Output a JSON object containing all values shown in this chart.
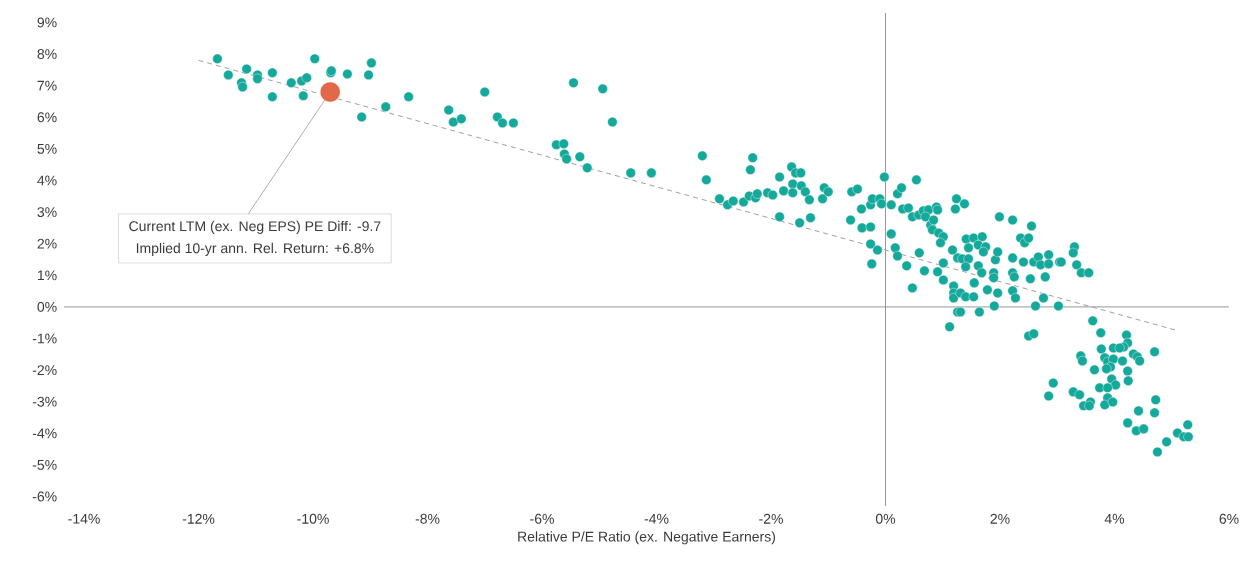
{
  "chart_data": {
    "type": "scatter",
    "xlabel": "Relative P/E Ratio (ex. Negative Earners)",
    "xlim": [
      -14.35,
      6
    ],
    "ylim": [
      -6.3,
      9.3
    ],
    "xticks": [
      {
        "value": -14,
        "label": "-14%"
      },
      {
        "value": -12,
        "label": "-12%"
      },
      {
        "value": -10,
        "label": "-10%"
      },
      {
        "value": -8,
        "label": "-8%"
      },
      {
        "value": -6,
        "label": "-6%"
      },
      {
        "value": -4,
        "label": "-4%"
      },
      {
        "value": -2,
        "label": "-2%"
      },
      {
        "value": 0,
        "label": "0%"
      },
      {
        "value": 2,
        "label": "2%"
      },
      {
        "value": 4,
        "label": "4%"
      },
      {
        "value": 6,
        "label": "6%"
      }
    ],
    "yticks": [
      {
        "value": -6,
        "label": "-6%"
      },
      {
        "value": -5,
        "label": "-5%"
      },
      {
        "value": -4,
        "label": "-4%"
      },
      {
        "value": -3,
        "label": "-3%"
      },
      {
        "value": -2,
        "label": "-2%"
      },
      {
        "value": -1,
        "label": "-1%"
      },
      {
        "value": 0,
        "label": "0%"
      },
      {
        "value": 1,
        "label": "1%"
      },
      {
        "value": 2,
        "label": "2%"
      },
      {
        "value": 3,
        "label": "3%"
      },
      {
        "value": 4,
        "label": "4%"
      },
      {
        "value": 5,
        "label": "5%"
      },
      {
        "value": 6,
        "label": "6%"
      },
      {
        "value": 7,
        "label": "7%"
      },
      {
        "value": 8,
        "label": "8%"
      },
      {
        "value": 9,
        "label": "9%"
      }
    ],
    "marker": "circle",
    "annotations": [
      {
        "text": "Current LTM (ex. Neg EPS) PE Diff: -9.7",
        "x": -9.7,
        "y": 6.8
      },
      "Implied 10-yr ann. Rel. Return: +6.8%"
    ],
    "series": [
      {
        "color": "#14a99a",
        "x": [
          -11.67,
          -11.48,
          -11.16,
          -11.25,
          -11.23,
          -10.97,
          -10.97,
          -10.71,
          -10.71,
          -10.38,
          -10.2,
          -10.11,
          -10.17,
          -9.97,
          -9.69,
          -9.68,
          -9.4,
          -9.03,
          -8.98,
          -9.15,
          -8.73,
          -8.33,
          -7.63,
          -7.55,
          -7.41,
          -7.0,
          -6.78,
          -6.69,
          -6.5,
          -5.75,
          -5.62,
          -5.45,
          -4.94,
          -4.77,
          -5.61,
          -5.57,
          -5.34,
          -5.21,
          -4.45,
          -4.09,
          -3.2,
          -3.13,
          -2.9,
          -2.76,
          -2.66,
          -2.48,
          -2.38,
          -2.27,
          -2.24,
          -2.32,
          -2.36,
          -2.06,
          -1.97,
          -1.85,
          -1.78,
          -1.64,
          -1.57,
          -1.48,
          -1.62,
          -1.62,
          -1.47,
          -1.4,
          -1.33,
          -1.85,
          -1.5,
          -1.31,
          -1.1,
          -1.07,
          -1.0,
          -0.59,
          -0.49,
          -0.61,
          -0.42,
          -0.41,
          -0.26,
          -0.26,
          -0.14,
          -0.24,
          -0.26,
          -0.23,
          -0.1,
          -0.07,
          -0.02,
          0.1,
          0.1,
          0.17,
          0.21,
          0.21,
          0.28,
          0.3,
          0.4,
          0.47,
          0.54,
          0.58,
          0.66,
          0.75,
          0.7,
          0.79,
          0.84,
          0.82,
          0.89,
          0.91,
          0.93,
          1.01,
          0.96,
          0.37,
          0.47,
          0.59,
          0.68,
          0.91,
          1.01,
          1.01,
          1.17,
          1.19,
          1.19,
          1.19,
          1.24,
          1.22,
          1.38,
          1.26,
          1.34,
          1.45,
          1.4,
          1.41,
          1.45,
          1.54,
          1.69,
          1.62,
          1.75,
          1.71,
          1.31,
          1.4,
          1.54,
          1.26,
          1.31,
          1.64,
          1.12,
          1.55,
          1.62,
          1.68,
          1.78,
          1.89,
          1.92,
          1.96,
          1.89,
          1.96,
          1.9,
          1.99,
          2.22,
          2.22,
          2.22,
          2.25,
          2.22,
          2.27,
          2.41,
          2.36,
          2.43,
          2.5,
          2.55,
          2.53,
          2.59,
          2.67,
          2.71,
          2.85,
          2.85,
          3.04,
          2.79,
          2.76,
          2.62,
          3.02,
          2.5,
          2.59,
          3.07,
          3.3,
          3.28,
          3.34,
          3.42,
          3.55,
          3.62,
          3.76,
          4.21,
          4.23,
          4.16,
          3.77,
          3.98,
          4.09,
          3.41,
          3.44,
          3.83,
          3.88,
          3.98,
          3.93,
          3.86,
          4.14,
          4.33,
          4.4,
          4.44,
          4.7,
          3.65,
          4.23,
          4.24,
          3.95,
          4.02,
          3.74,
          3.88,
          2.93,
          2.85,
          3.28,
          3.39,
          3.58,
          3.46,
          3.56,
          3.88,
          3.83,
          3.97,
          4.72,
          4.42,
          4.7,
          4.23,
          4.38,
          4.51,
          5.28,
          5.1,
          5.21,
          5.29,
          4.91,
          4.75
        ],
        "values": [
          7.85,
          7.34,
          7.53,
          7.09,
          6.96,
          7.34,
          7.22,
          7.41,
          6.65,
          7.09,
          7.15,
          7.25,
          6.68,
          7.85,
          7.41,
          7.47,
          7.37,
          7.34,
          7.72,
          6.01,
          6.33,
          6.65,
          6.23,
          5.85,
          5.95,
          6.8,
          6.01,
          5.82,
          5.82,
          5.13,
          5.16,
          7.09,
          6.9,
          5.85,
          4.84,
          4.68,
          4.75,
          4.4,
          4.24,
          4.24,
          4.78,
          4.02,
          3.42,
          3.23,
          3.35,
          3.32,
          3.51,
          3.45,
          3.58,
          4.72,
          4.34,
          3.61,
          3.54,
          4.11,
          3.67,
          4.43,
          4.24,
          4.24,
          3.89,
          3.61,
          3.83,
          3.64,
          3.39,
          2.85,
          2.66,
          2.82,
          3.42,
          3.77,
          3.64,
          3.64,
          3.73,
          2.75,
          3.1,
          2.5,
          2.53,
          1.99,
          1.8,
          1.36,
          3.23,
          3.42,
          3.42,
          3.26,
          4.11,
          2.31,
          3.23,
          1.87,
          1.61,
          3.58,
          3.77,
          3.1,
          3.13,
          2.85,
          4.02,
          2.91,
          3.04,
          3.07,
          2.85,
          2.59,
          2.75,
          2.44,
          3.16,
          3.07,
          2.34,
          2.22,
          2.03,
          1.3,
          0.6,
          1.71,
          1.14,
          1.11,
          1.39,
          0.85,
          1.8,
          0.66,
          0.44,
          0.28,
          3.42,
          3.1,
          3.26,
          1.55,
          1.52,
          1.52,
          1.27,
          2.15,
          1.87,
          2.18,
          2.22,
          1.96,
          1.9,
          1.74,
          0.44,
          0.32,
          0.32,
          -0.16,
          -0.16,
          -0.16,
          -0.63,
          0.76,
          1.3,
          1.08,
          0.54,
          1.08,
          1.49,
          1.74,
          0.92,
          0.44,
          0.03,
          2.85,
          2.75,
          1.55,
          1.08,
          0.95,
          0.51,
          0.28,
          1.42,
          2.18,
          2.03,
          2.18,
          2.56,
          0.89,
          1.42,
          1.58,
          1.33,
          1.65,
          1.36,
          1.42,
          0.95,
          0.28,
          0.03,
          0.03,
          -0.92,
          -0.85,
          1.42,
          1.9,
          1.71,
          1.33,
          1.08,
          1.08,
          -0.44,
          -0.82,
          -0.89,
          -1.14,
          -1.27,
          -1.33,
          -1.3,
          -1.3,
          -1.55,
          -1.71,
          -1.61,
          -1.74,
          -1.65,
          -1.9,
          -1.96,
          -1.71,
          -1.49,
          -1.58,
          -1.71,
          -1.42,
          -1.99,
          -2.03,
          -2.34,
          -2.28,
          -2.47,
          -2.56,
          -2.56,
          -2.41,
          -2.82,
          -2.69,
          -2.78,
          -3.01,
          -3.13,
          -3.13,
          -2.88,
          -3.1,
          -3.01,
          -2.94,
          -3.29,
          -3.35,
          -3.67,
          -3.92,
          -3.86,
          -3.73,
          -3.99,
          -4.11,
          -4.11,
          -4.27,
          -4.59
        ]
      },
      {
        "color": "#e2684a",
        "x": [
          -9.7
        ],
        "values": [
          6.8
        ]
      },
      {
        "type": "line",
        "color": "#a0a0a0",
        "line_style": "dashed",
        "marker": "none",
        "x": [
          -12,
          5.1
        ],
        "values": [
          7.8,
          -0.75
        ]
      }
    ]
  }
}
